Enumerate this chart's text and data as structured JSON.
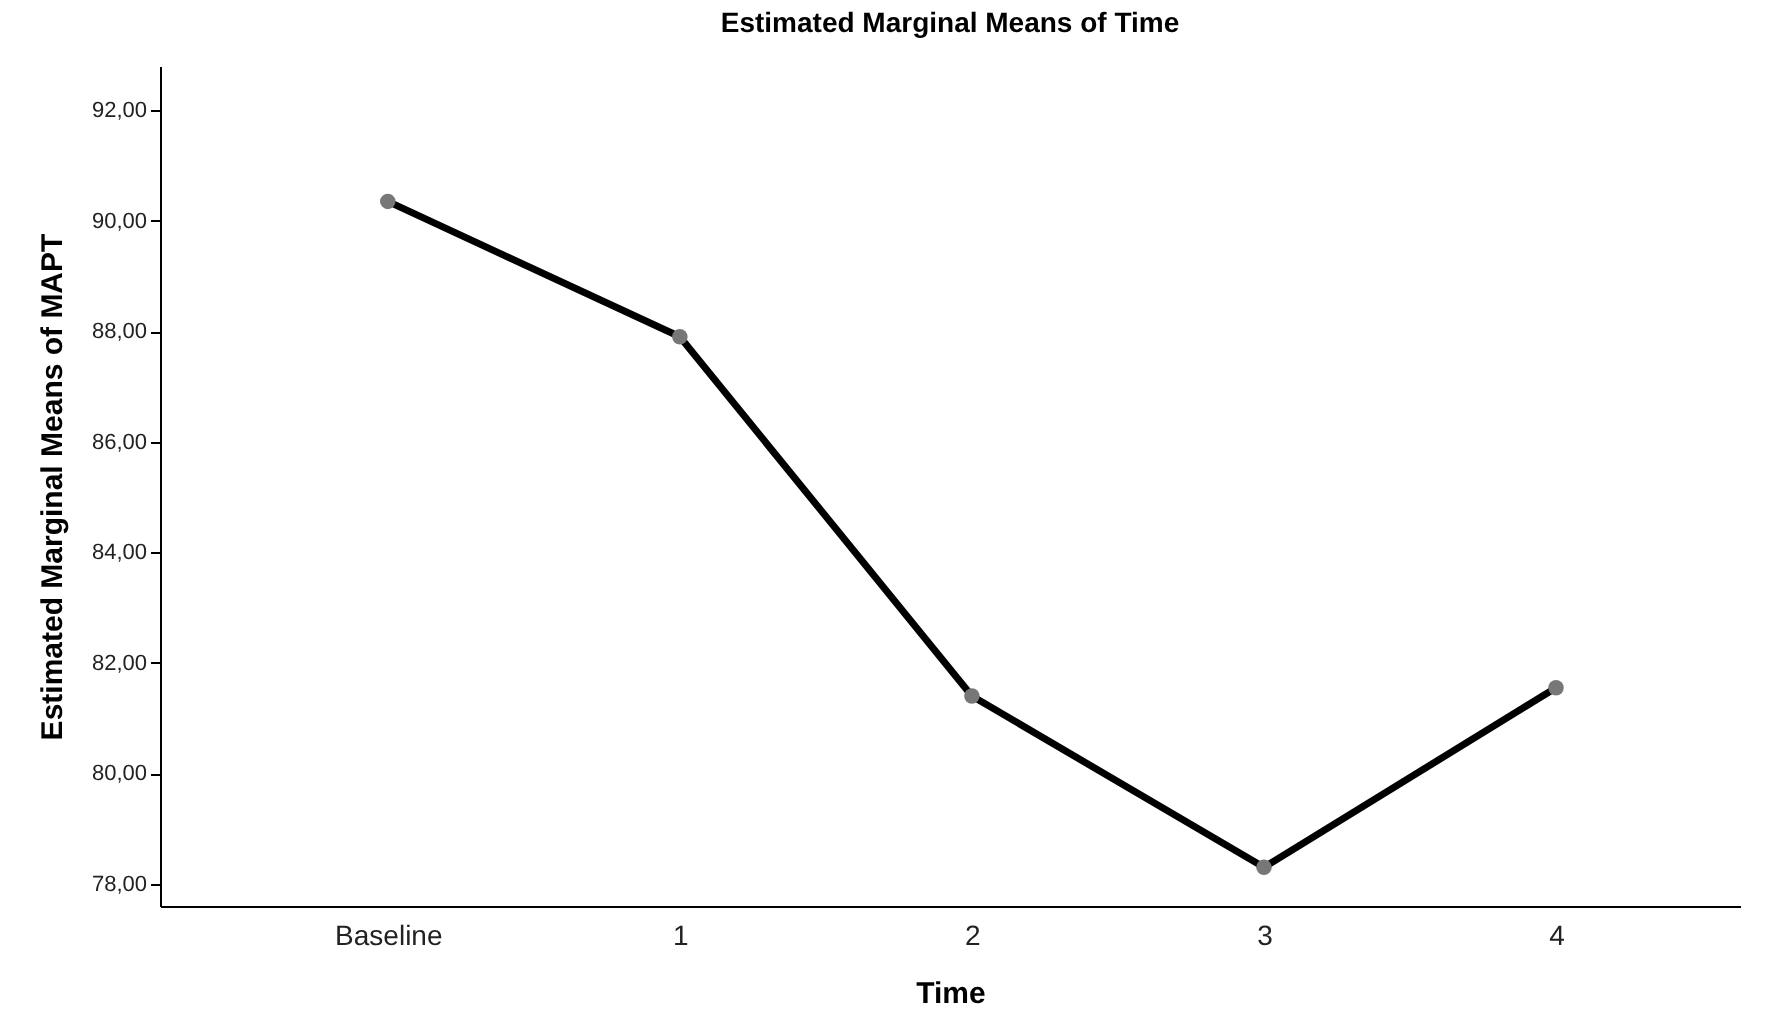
{
  "chart_data": {
    "type": "line",
    "title": "Estimated Marginal Means of Time",
    "xlabel": "Time",
    "ylabel": "Estimated Marginal Means of MAPT",
    "categories": [
      "Baseline",
      "1",
      "2",
      "3",
      "4"
    ],
    "series": [
      {
        "color": "#000000",
        "values": [
          90.35,
          87.9,
          81.4,
          78.3,
          81.55
        ]
      }
    ],
    "ylim": [
      77.6,
      92.8
    ],
    "yticks": [
      {
        "value": 78,
        "label": "78,00"
      },
      {
        "value": 80,
        "label": "80,00"
      },
      {
        "value": 82,
        "label": "82,00"
      },
      {
        "value": 84,
        "label": "84,00"
      },
      {
        "value": 86,
        "label": "86,00"
      },
      {
        "value": 88,
        "label": "88,00"
      },
      {
        "value": 90,
        "label": "90,00"
      },
      {
        "value": 92,
        "label": "92,00"
      }
    ],
    "grid": false,
    "legend": false,
    "marker": "circle",
    "line_style": "solid"
  }
}
